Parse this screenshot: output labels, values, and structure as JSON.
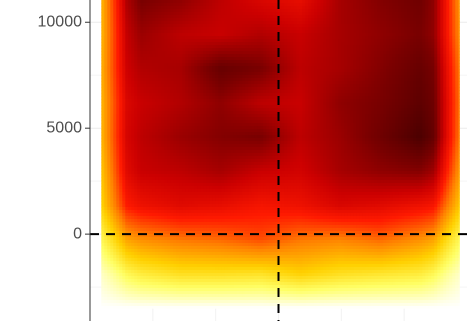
{
  "chart_data": {
    "type": "heatmap",
    "title": "",
    "xlabel": "",
    "ylabel": "",
    "y_ticks": [
      {
        "value": 10000,
        "label": "10000"
      },
      {
        "value": 5000,
        "label": "5000"
      },
      {
        "value": 0,
        "label": "0"
      }
    ],
    "ylim": [
      -4100,
      11050
    ],
    "xlim": [
      0,
      1
    ],
    "data_extent": {
      "x": [
        0.03,
        0.98
      ],
      "y": [
        -3500,
        11050
      ]
    },
    "reference_lines": {
      "horizontal_y": 0,
      "vertical_x": 0.5,
      "style": "dashed",
      "color": "#000000"
    },
    "grid": true,
    "colormap": [
      "#ffffff",
      "#ffff66",
      "#ffd000",
      "#ff8000",
      "#ff1a00",
      "#cc0000",
      "#7a0000",
      "#3a0000"
    ],
    "density_grid": [
      [
        0.0,
        0.0,
        0.0,
        0.0,
        0.0,
        0.0,
        0.0,
        0.0,
        0.0,
        0.0
      ],
      [
        0.1,
        0.2,
        0.24,
        0.24,
        0.23,
        0.28,
        0.24,
        0.22,
        0.2,
        0.1
      ],
      [
        0.3,
        0.4,
        0.44,
        0.46,
        0.5,
        0.44,
        0.42,
        0.46,
        0.4,
        0.3
      ],
      [
        0.5,
        0.62,
        0.66,
        0.64,
        0.6,
        0.62,
        0.68,
        0.66,
        0.62,
        0.55
      ],
      [
        0.55,
        0.72,
        0.74,
        0.78,
        0.72,
        0.7,
        0.78,
        0.82,
        0.84,
        0.7
      ],
      [
        0.6,
        0.74,
        0.8,
        0.84,
        0.86,
        0.74,
        0.8,
        0.88,
        0.96,
        0.8
      ],
      [
        0.6,
        0.72,
        0.76,
        0.82,
        0.74,
        0.72,
        0.82,
        0.86,
        0.92,
        0.82
      ],
      [
        0.62,
        0.76,
        0.78,
        0.9,
        0.86,
        0.74,
        0.78,
        0.84,
        0.9,
        0.8
      ],
      [
        0.6,
        0.8,
        0.74,
        0.72,
        0.76,
        0.72,
        0.78,
        0.82,
        0.86,
        0.74
      ],
      [
        0.6,
        0.86,
        0.82,
        0.74,
        0.68,
        0.64,
        0.78,
        0.84,
        0.88,
        0.72
      ]
    ]
  }
}
